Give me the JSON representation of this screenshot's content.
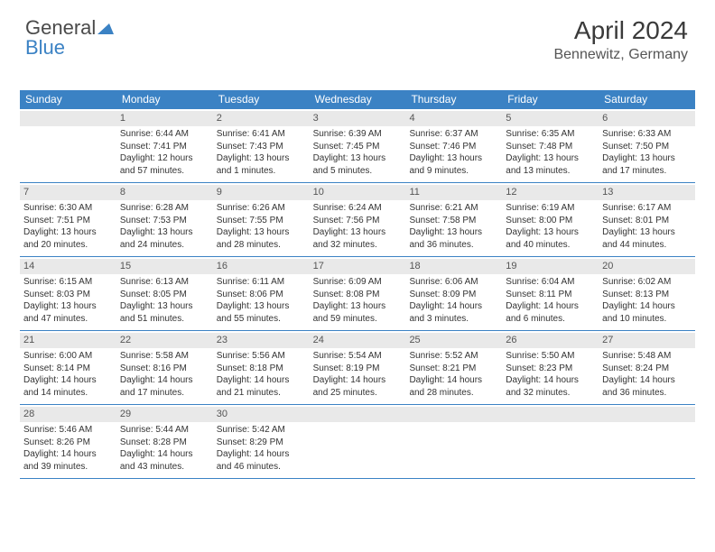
{
  "logo": {
    "text_a": "General",
    "text_b": "Blue"
  },
  "header": {
    "title": "April 2024",
    "location": "Bennewitz, Germany"
  },
  "colors": {
    "accent": "#3b82c4",
    "header_text": "#ffffff",
    "daynum_bg": "#e9e9e9",
    "text": "#333333",
    "muted": "#555555"
  },
  "dayNames": [
    "Sunday",
    "Monday",
    "Tuesday",
    "Wednesday",
    "Thursday",
    "Friday",
    "Saturday"
  ],
  "grid": {
    "firstDayOffset": 1,
    "daysInMonth": 30
  },
  "days": {
    "1": {
      "sunrise": "6:44 AM",
      "sunset": "7:41 PM",
      "daylight": "12 hours and 57 minutes."
    },
    "2": {
      "sunrise": "6:41 AM",
      "sunset": "7:43 PM",
      "daylight": "13 hours and 1 minutes."
    },
    "3": {
      "sunrise": "6:39 AM",
      "sunset": "7:45 PM",
      "daylight": "13 hours and 5 minutes."
    },
    "4": {
      "sunrise": "6:37 AM",
      "sunset": "7:46 PM",
      "daylight": "13 hours and 9 minutes."
    },
    "5": {
      "sunrise": "6:35 AM",
      "sunset": "7:48 PM",
      "daylight": "13 hours and 13 minutes."
    },
    "6": {
      "sunrise": "6:33 AM",
      "sunset": "7:50 PM",
      "daylight": "13 hours and 17 minutes."
    },
    "7": {
      "sunrise": "6:30 AM",
      "sunset": "7:51 PM",
      "daylight": "13 hours and 20 minutes."
    },
    "8": {
      "sunrise": "6:28 AM",
      "sunset": "7:53 PM",
      "daylight": "13 hours and 24 minutes."
    },
    "9": {
      "sunrise": "6:26 AM",
      "sunset": "7:55 PM",
      "daylight": "13 hours and 28 minutes."
    },
    "10": {
      "sunrise": "6:24 AM",
      "sunset": "7:56 PM",
      "daylight": "13 hours and 32 minutes."
    },
    "11": {
      "sunrise": "6:21 AM",
      "sunset": "7:58 PM",
      "daylight": "13 hours and 36 minutes."
    },
    "12": {
      "sunrise": "6:19 AM",
      "sunset": "8:00 PM",
      "daylight": "13 hours and 40 minutes."
    },
    "13": {
      "sunrise": "6:17 AM",
      "sunset": "8:01 PM",
      "daylight": "13 hours and 44 minutes."
    },
    "14": {
      "sunrise": "6:15 AM",
      "sunset": "8:03 PM",
      "daylight": "13 hours and 47 minutes."
    },
    "15": {
      "sunrise": "6:13 AM",
      "sunset": "8:05 PM",
      "daylight": "13 hours and 51 minutes."
    },
    "16": {
      "sunrise": "6:11 AM",
      "sunset": "8:06 PM",
      "daylight": "13 hours and 55 minutes."
    },
    "17": {
      "sunrise": "6:09 AM",
      "sunset": "8:08 PM",
      "daylight": "13 hours and 59 minutes."
    },
    "18": {
      "sunrise": "6:06 AM",
      "sunset": "8:09 PM",
      "daylight": "14 hours and 3 minutes."
    },
    "19": {
      "sunrise": "6:04 AM",
      "sunset": "8:11 PM",
      "daylight": "14 hours and 6 minutes."
    },
    "20": {
      "sunrise": "6:02 AM",
      "sunset": "8:13 PM",
      "daylight": "14 hours and 10 minutes."
    },
    "21": {
      "sunrise": "6:00 AM",
      "sunset": "8:14 PM",
      "daylight": "14 hours and 14 minutes."
    },
    "22": {
      "sunrise": "5:58 AM",
      "sunset": "8:16 PM",
      "daylight": "14 hours and 17 minutes."
    },
    "23": {
      "sunrise": "5:56 AM",
      "sunset": "8:18 PM",
      "daylight": "14 hours and 21 minutes."
    },
    "24": {
      "sunrise": "5:54 AM",
      "sunset": "8:19 PM",
      "daylight": "14 hours and 25 minutes."
    },
    "25": {
      "sunrise": "5:52 AM",
      "sunset": "8:21 PM",
      "daylight": "14 hours and 28 minutes."
    },
    "26": {
      "sunrise": "5:50 AM",
      "sunset": "8:23 PM",
      "daylight": "14 hours and 32 minutes."
    },
    "27": {
      "sunrise": "5:48 AM",
      "sunset": "8:24 PM",
      "daylight": "14 hours and 36 minutes."
    },
    "28": {
      "sunrise": "5:46 AM",
      "sunset": "8:26 PM",
      "daylight": "14 hours and 39 minutes."
    },
    "29": {
      "sunrise": "5:44 AM",
      "sunset": "8:28 PM",
      "daylight": "14 hours and 43 minutes."
    },
    "30": {
      "sunrise": "5:42 AM",
      "sunset": "8:29 PM",
      "daylight": "14 hours and 46 minutes."
    }
  },
  "labels": {
    "sunrise": "Sunrise:",
    "sunset": "Sunset:",
    "daylight": "Daylight:"
  }
}
